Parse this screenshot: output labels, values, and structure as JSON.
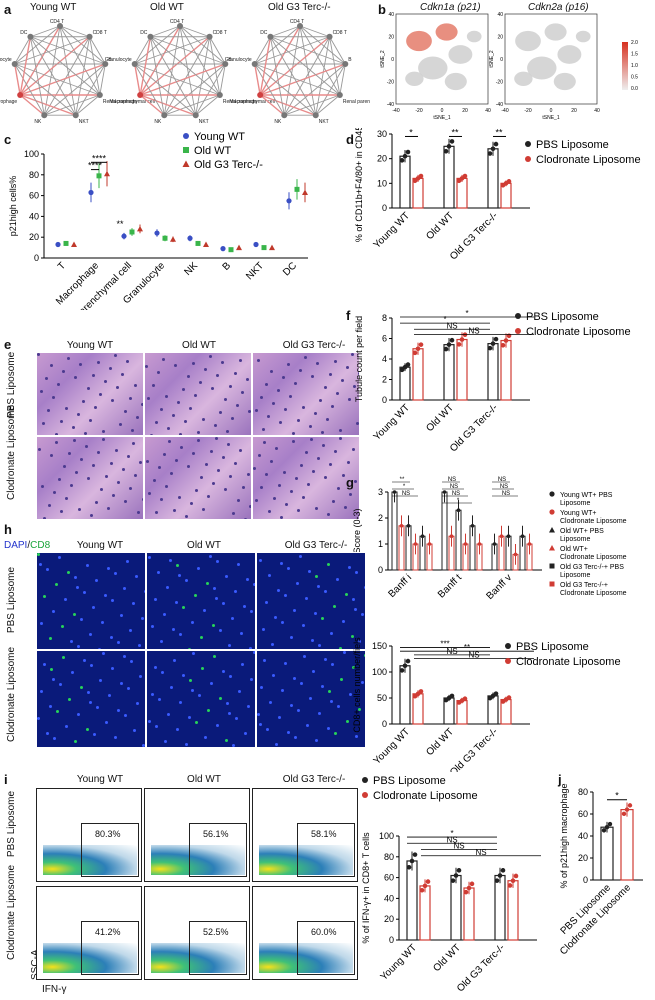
{
  "panels": {
    "a": {
      "label": "a",
      "titles": [
        "Young WT",
        "Old WT",
        "Old G3 Terc-/-"
      ],
      "nodes": [
        "CD4 T",
        "CD8 T",
        "B",
        "Renal parenchymal cell",
        "NKT",
        "NK",
        "Macrophage",
        "Granulocyte",
        "DC"
      ]
    },
    "b": {
      "label": "b",
      "titles": [
        "Cdkn1a (p21)",
        "Cdkn2a (p16)"
      ],
      "xlabel": "tSNE_1",
      "ylabel": "tSNE_2",
      "colorbar": [
        "2.0",
        "1.5",
        "1.0",
        "0.5",
        "0.0"
      ],
      "xticks": [
        "-40",
        "-20",
        "0",
        "20",
        "40"
      ],
      "yticks": [
        "40",
        "20",
        "0",
        "-20",
        "-40"
      ]
    },
    "c": {
      "label": "c",
      "legend": [
        "Young WT",
        "Old WT",
        "Old G3 Terc-/-"
      ]
    },
    "d": {
      "label": "d",
      "legend": [
        "PBS Liposome",
        "Clodronate Liposome"
      ]
    },
    "e": {
      "label": "e",
      "cols": [
        "Young WT",
        "Old WT",
        "Old G3 Terc-/-"
      ],
      "rows": [
        "PBS Liposome",
        "Clodronate Liposome"
      ]
    },
    "f": {
      "label": "f",
      "legend": [
        "PBS Liposome",
        "Clodronate Liposome"
      ]
    },
    "g": {
      "label": "g",
      "legend": [
        "Young WT+ PBS Liposome",
        "Young WT+ Clodronate Liposome",
        "Old WT+ PBS Liposome",
        "Old WT+ Clodronate Liposome",
        "Old G3 Terc-/-+ PBS Liposome",
        "Old G3 Terc-/-+ Clodronate Liposome"
      ]
    },
    "h": {
      "label": "h",
      "stain_dapi": "DAPI",
      "stain_sep": "/",
      "stain_cd8": "CD8",
      "cols": [
        "Young WT",
        "Old WT",
        "Old G3 Terc-/-"
      ],
      "rows": [
        "PBS Liposome",
        "Clodronate Liposome"
      ],
      "legend": [
        "PBS Liposome",
        "Clodronate Liposome"
      ]
    },
    "i": {
      "label": "i",
      "cols": [
        "Young WT",
        "Old WT",
        "Old G3 Terc-/-"
      ],
      "rows": [
        "PBS Liposome",
        "Clodronate Liposome"
      ],
      "pcts": [
        [
          "80.3%",
          "56.1%",
          "58.1%"
        ],
        [
          "41.2%",
          "52.5%",
          "60.0%"
        ]
      ],
      "xaxis": "IFN-γ",
      "yaxis": "SSC-A",
      "legend": [
        "PBS Liposome",
        "Clodronate Liposome"
      ]
    },
    "j": {
      "label": "j"
    }
  },
  "chart_data": [
    {
      "id": "c",
      "type": "scatter",
      "ylabel": "p21high cells%",
      "ylim": [
        0,
        100
      ],
      "yticks": [
        0,
        20,
        40,
        60,
        80,
        100
      ],
      "categories": [
        "T",
        "Macrophage",
        "Renal parenchymal cell",
        "Granulocyte",
        "NK",
        "B",
        "NKT",
        "DC"
      ],
      "series": [
        {
          "name": "Young WT",
          "color": "#3a4fc4",
          "values": [
            13,
            63,
            21,
            24,
            19,
            9,
            13,
            55
          ]
        },
        {
          "name": "Old WT",
          "color": "#39b54a",
          "values": [
            14,
            79,
            25,
            19,
            14,
            8,
            10,
            66
          ]
        },
        {
          "name": "Old G3 Terc-/-",
          "color": "#c0392b",
          "values": [
            13,
            81,
            28,
            18,
            13,
            10,
            10,
            63
          ]
        }
      ],
      "annotations": [
        "****",
        "****",
        "**"
      ]
    },
    {
      "id": "d",
      "type": "bar",
      "ylabel": "% of CD11b+F4/80+ in CD45+ cells",
      "ylim": [
        0,
        30
      ],
      "yticks": [
        0,
        10,
        20,
        30
      ],
      "categories": [
        "Young WT",
        "Old WT",
        "Old G3 Terc-/-"
      ],
      "series": [
        {
          "name": "PBS Liposome",
          "color": "#222222",
          "values": [
            21,
            25,
            24
          ]
        },
        {
          "name": "Clodronate Liposome",
          "color": "#d03c34",
          "values": [
            12,
            12,
            10
          ]
        }
      ],
      "annotations": [
        "*",
        "**",
        "**"
      ]
    },
    {
      "id": "f",
      "type": "bar",
      "ylabel": "Tubule count per field",
      "ylim": [
        0,
        8
      ],
      "yticks": [
        0,
        2,
        4,
        6,
        8
      ],
      "categories": [
        "Young WT",
        "Old WT",
        "Old G3 Terc-/-"
      ],
      "series": [
        {
          "name": "PBS Liposome",
          "color": "#222222",
          "values": [
            3.2,
            5.4,
            5.5
          ]
        },
        {
          "name": "Clodronate Liposome",
          "color": "#d03c34",
          "values": [
            5.0,
            5.9,
            5.8
          ]
        }
      ],
      "annotations": [
        "*",
        "*",
        "NS",
        "NS"
      ]
    },
    {
      "id": "g",
      "type": "bar",
      "ylabel": "Score (0-3)",
      "ylim": [
        0,
        3
      ],
      "yticks": [
        0,
        1,
        2,
        3
      ],
      "categories": [
        "Banff i",
        "Banff t",
        "Banff v"
      ],
      "series": [
        {
          "name": "Young WT+ PBS Liposome",
          "values": [
            3,
            3,
            1
          ]
        },
        {
          "name": "Young WT+ Clodronate Liposome",
          "values": [
            1.7,
            1.3,
            1.3
          ]
        },
        {
          "name": "Old WT+ PBS Liposome",
          "values": [
            1.7,
            2.3,
            1.3
          ]
        },
        {
          "name": "Old WT+ Clodronate Liposome",
          "values": [
            1,
            1,
            0.6
          ]
        },
        {
          "name": "Old G3 Terc-/-+ PBS Liposome",
          "values": [
            1.3,
            1.7,
            1.3
          ]
        },
        {
          "name": "Old G3 Terc-/-+ Clodronate Liposome",
          "values": [
            1,
            1,
            1
          ]
        }
      ],
      "annotations": [
        "**",
        "*",
        "NS",
        "NS",
        "NS",
        "NS",
        "*",
        "NS",
        "NS",
        "NS"
      ]
    },
    {
      "id": "h",
      "type": "bar",
      "ylabel": "CD8+ cells number/fiels",
      "ylim": [
        0,
        150
      ],
      "yticks": [
        0,
        50,
        100,
        150
      ],
      "categories": [
        "Young WT",
        "Old WT",
        "Old G3 Terc-/-"
      ],
      "series": [
        {
          "name": "PBS Liposome",
          "color": "#222222",
          "values": [
            112,
            50,
            54
          ]
        },
        {
          "name": "Clodronate Liposome",
          "color": "#d03c34",
          "values": [
            58,
            45,
            47
          ]
        }
      ],
      "annotations": [
        "***",
        "**",
        "NS",
        "NS"
      ]
    },
    {
      "id": "i",
      "type": "bar",
      "ylabel": "% of IFN-γ+ in CD8+ T cells",
      "ylim": [
        0,
        100
      ],
      "yticks": [
        0,
        20,
        40,
        60,
        80,
        100
      ],
      "categories": [
        "Young WT",
        "Old WT",
        "Old G3 Terc-/-"
      ],
      "series": [
        {
          "name": "PBS Liposome",
          "color": "#222222",
          "values": [
            76,
            62,
            62
          ]
        },
        {
          "name": "Clodronate Liposome",
          "color": "#d03c34",
          "values": [
            52,
            50,
            57
          ]
        }
      ],
      "annotations": [
        "*",
        "NS",
        "NS",
        "NS"
      ]
    },
    {
      "id": "j",
      "type": "bar",
      "ylabel": "% of p21high macrophage",
      "ylim": [
        0,
        80
      ],
      "yticks": [
        0,
        20,
        40,
        60,
        80
      ],
      "categories": [
        "PBS Liposome",
        "Clodronate Liposome"
      ],
      "series": [
        {
          "name": "p21high macrophage",
          "values": [
            48,
            64
          ],
          "colors": [
            "#222222",
            "#d03c34"
          ]
        }
      ],
      "annotations": [
        "*"
      ]
    }
  ]
}
